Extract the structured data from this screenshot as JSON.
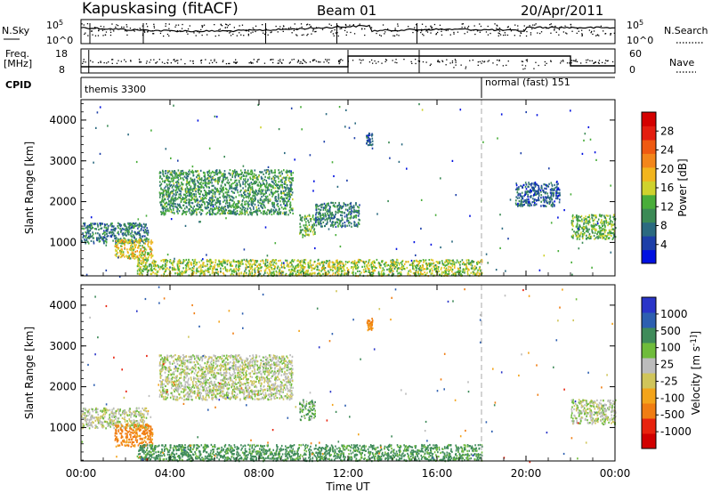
{
  "header": {
    "station": "Kapuskasing (fitACF)",
    "beam": "Beam 01",
    "date": "20/Apr/2011"
  },
  "noise_panel": {
    "left_label": "N.Sky",
    "left_ticks": [
      "10^5",
      "10^0"
    ],
    "right_ticks": [
      "10^5",
      "10^0"
    ],
    "right_label": "N.Search",
    "right_legend_style": "dotted"
  },
  "freq_panel": {
    "left_label_top": "Freq.",
    "left_label_bottom": "[MHz]",
    "left_ticks": [
      "18",
      "8"
    ],
    "right_ticks": [
      "60",
      "0"
    ],
    "right_label": "Nave",
    "right_legend_style": "dotted"
  },
  "cpid_panel": {
    "label": "CPID",
    "modes": [
      {
        "name": "themis 3300",
        "start_hour": 0,
        "end_hour": 18
      },
      {
        "name": "normal (fast) 151",
        "start_hour": 18,
        "end_hour": 24
      }
    ]
  },
  "colors": {
    "power_scale": [
      "#0010e0",
      "#1d3fa8",
      "#2b6a80",
      "#3b8a55",
      "#49ad3a",
      "#cfd22d",
      "#f2b51e",
      "#f3861b",
      "#ef5a12",
      "#e41e10",
      "#d40000"
    ],
    "velocity_scale": [
      "#2a35c8",
      "#2d5fb0",
      "#3f8b5a",
      "#6fbc3b",
      "#bcbcbc",
      "#d0c55a",
      "#f3a41b",
      "#f07d12",
      "#e8230e",
      "#d10000"
    ]
  },
  "chart_data": [
    {
      "panel": "power",
      "type": "heatmap",
      "xlabel": "Time UT",
      "ylabel": "Slant Range [km]",
      "xlim": [
        0,
        24
      ],
      "ylim": [
        180,
        4500
      ],
      "x_ticks": [
        "00:00",
        "04:00",
        "08:00",
        "12:00",
        "16:00",
        "20:00",
        "00:00"
      ],
      "y_ticks": [
        1000,
        2000,
        3000,
        4000
      ],
      "colorbar": {
        "label": "Power [dB]",
        "ticks": [
          4,
          8,
          12,
          16,
          20,
          24,
          28
        ],
        "range": [
          0,
          30
        ]
      },
      "regions": [
        {
          "t_start": 0.0,
          "t_end": 3.0,
          "range_low": 1000,
          "range_high": 1500,
          "power": 8
        },
        {
          "t_start": 1.5,
          "t_end": 3.2,
          "range_low": 600,
          "range_high": 1100,
          "power": 16
        },
        {
          "t_start": 3.5,
          "t_end": 9.5,
          "range_low": 1700,
          "range_high": 2800,
          "power": 10
        },
        {
          "t_start": 9.8,
          "t_end": 10.5,
          "range_low": 1200,
          "range_high": 1700,
          "power": 12
        },
        {
          "t_start": 10.5,
          "t_end": 12.5,
          "range_low": 1400,
          "range_high": 2000,
          "power": 8
        },
        {
          "t_start": 2.5,
          "t_end": 18.0,
          "range_low": 200,
          "range_high": 600,
          "power": 14
        },
        {
          "t_start": 12.8,
          "t_end": 13.1,
          "range_low": 3400,
          "range_high": 3700,
          "power": 6
        },
        {
          "t_start": 19.5,
          "t_end": 21.5,
          "range_low": 1900,
          "range_high": 2500,
          "power": 6
        },
        {
          "t_start": 22.0,
          "t_end": 24.0,
          "range_low": 1100,
          "range_high": 1700,
          "power": 12
        }
      ]
    },
    {
      "panel": "velocity",
      "type": "heatmap",
      "xlabel": "Time UT",
      "ylabel": "Slant Range [km]",
      "xlim": [
        0,
        24
      ],
      "ylim": [
        180,
        4500
      ],
      "x_ticks": [
        "00:00",
        "04:00",
        "08:00",
        "12:00",
        "16:00",
        "20:00",
        "00:00"
      ],
      "y_ticks": [
        1000,
        2000,
        3000,
        4000
      ],
      "colorbar": {
        "label": "Velocity [m s^-1]",
        "ticks": [
          1000,
          500,
          100,
          25,
          -25,
          -100,
          -500,
          -1000
        ]
      },
      "regions": [
        {
          "t_start": 0.0,
          "t_end": 3.0,
          "range_low": 1000,
          "range_high": 1500,
          "velocity": 0
        },
        {
          "t_start": 1.5,
          "t_end": 3.2,
          "range_low": 550,
          "range_high": 1100,
          "velocity": -300
        },
        {
          "t_start": 3.5,
          "t_end": 9.5,
          "range_low": 1700,
          "range_high": 2800,
          "velocity": 0
        },
        {
          "t_start": 9.8,
          "t_end": 10.5,
          "range_low": 1200,
          "range_high": 1700,
          "velocity": 100
        },
        {
          "t_start": 2.5,
          "t_end": 18.0,
          "range_low": 200,
          "range_high": 600,
          "velocity": 150
        },
        {
          "t_start": 12.8,
          "t_end": 13.1,
          "range_low": 3400,
          "range_high": 3700,
          "velocity": -300
        },
        {
          "t_start": 22.0,
          "t_end": 24.0,
          "range_low": 1100,
          "range_high": 1700,
          "velocity": 0
        }
      ]
    }
  ]
}
